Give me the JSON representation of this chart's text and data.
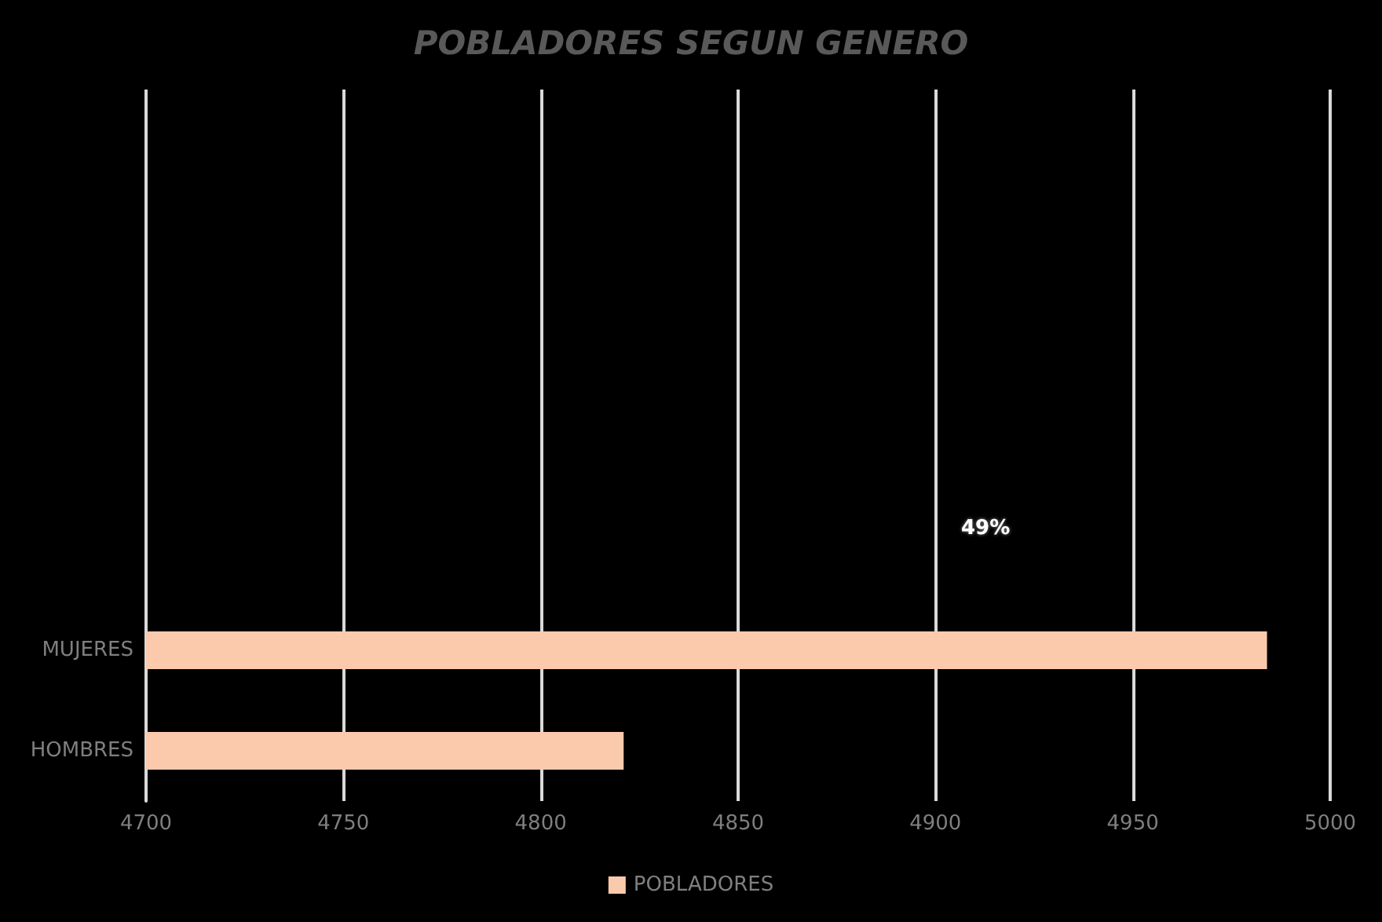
{
  "chart_data": {
    "type": "bar",
    "orientation": "horizontal",
    "title": "POBLADORES SEGUN GENERO",
    "categories": [
      "MUJERES",
      "HOMBRES"
    ],
    "series": [
      {
        "name": "POBLADORES",
        "color": "#fbcaad",
        "values": [
          4984,
          4821
        ]
      }
    ],
    "xlim": [
      4700,
      5000
    ],
    "xticks": [
      4700,
      4750,
      4800,
      4850,
      4900,
      4950,
      5000
    ],
    "grid": "x",
    "legend": "bottom",
    "annotations": [
      "49%"
    ]
  }
}
